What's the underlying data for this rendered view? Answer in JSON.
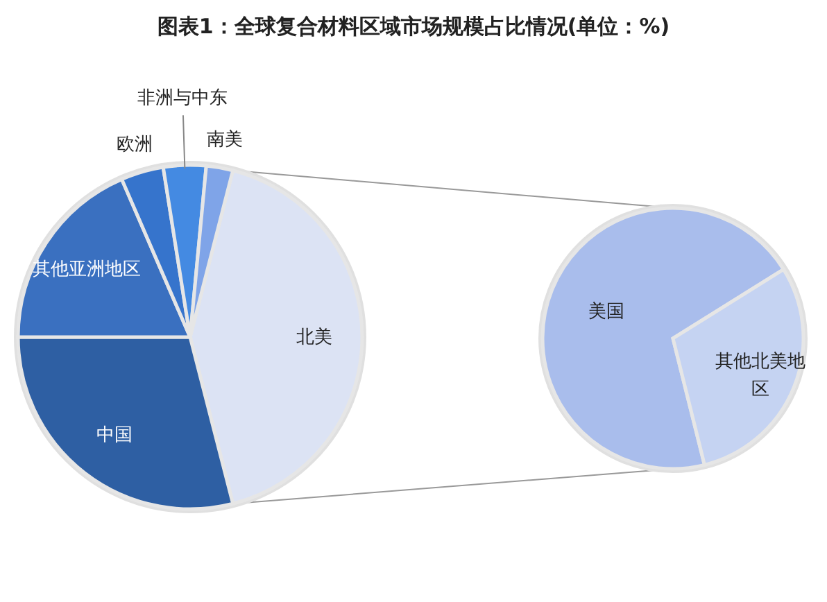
{
  "chart_data": [
    {
      "type": "pie",
      "title": "图表1：全球复合材料区域市场规模占比情况(单位：%)",
      "categories": [
        "北美",
        "中国",
        "其他亚洲地区",
        "欧洲",
        "非洲与中东",
        "南美"
      ],
      "values": [
        42,
        29,
        18.5,
        4,
        4,
        2.5
      ],
      "colors": [
        "#dce3f4",
        "#2e5fa3",
        "#3a70c0",
        "#3674cc",
        "#448ae2",
        "#7fa4e8"
      ]
    },
    {
      "type": "pie",
      "categories": [
        "美国",
        "其他北美地区"
      ],
      "values": [
        70,
        30
      ],
      "colors": [
        "#a9bdec",
        "#c5d3f2"
      ]
    }
  ]
}
